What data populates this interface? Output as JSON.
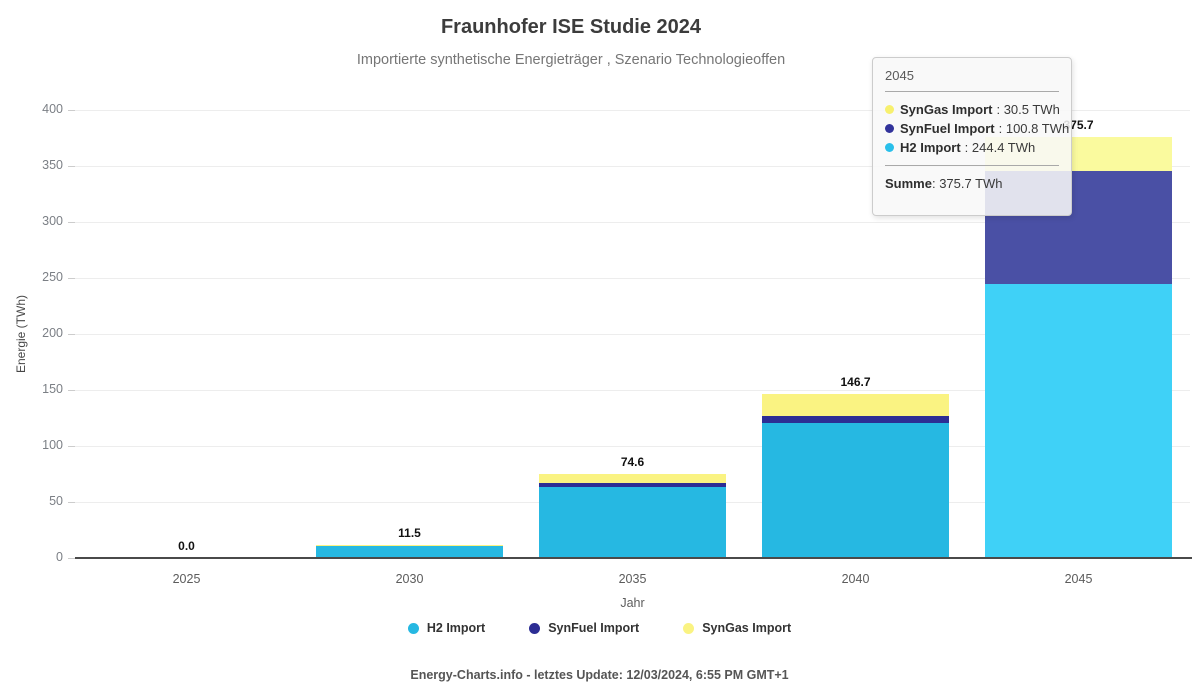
{
  "title": "Fraunhofer ISE Studie 2024",
  "subtitle": "Importierte synthetische Energieträger , Szenario Technologieoffen",
  "footer": "Energy-Charts.info - letztes Update: 12/03/2024, 6:55 PM GMT+1",
  "chart_data": {
    "type": "bar",
    "stacked": true,
    "title": "Fraunhofer ISE Studie 2024",
    "subtitle": "Importierte synthetische Energieträger , Szenario Technologieoffen",
    "xlabel": "Jahr",
    "ylabel": "Energie (TWh)",
    "ylim": [
      0,
      400
    ],
    "ytick_step": 50,
    "y_ticks": [
      "0",
      "50",
      "100",
      "150",
      "200",
      "250",
      "300",
      "350",
      "400"
    ],
    "grid": true,
    "legend_position": "bottom",
    "categories": [
      "2025",
      "2030",
      "2035",
      "2040",
      "2045"
    ],
    "series": [
      {
        "name": "H2 Import",
        "color": "#26B8E2",
        "hover_color": "#3FD1F7",
        "values": [
          0.0,
          10.6,
          63.8,
          120.8,
          244.4
        ]
      },
      {
        "name": "SynFuel Import",
        "color": "#2C2D94",
        "hover_color": "#4A50A5",
        "values": [
          0.0,
          0.0,
          3.3,
          6.3,
          100.8
        ]
      },
      {
        "name": "SynGas Import",
        "color": "#FAF382",
        "hover_color": "#FAFA9E",
        "values": [
          0.0,
          0.9,
          7.5,
          19.6,
          30.5
        ]
      }
    ],
    "totals": [
      "0.0",
      "11.5",
      "74.6",
      "146.7",
      "375.7"
    ],
    "hovered_category": "2045"
  },
  "tooltip": {
    "header": "2045",
    "items": [
      {
        "name": "SynGas Import",
        "value": ": 30.5 TWh",
        "color": "#F7F06E"
      },
      {
        "name": "SynFuel Import",
        "value": ": 100.8 TWh",
        "color": "#32339B"
      },
      {
        "name": "H2 Import",
        "value": ": 244.4 TWh",
        "color": "#29BFEA"
      }
    ],
    "summe_label": "Summe",
    "summe_value": ": 375.7 TWh"
  }
}
